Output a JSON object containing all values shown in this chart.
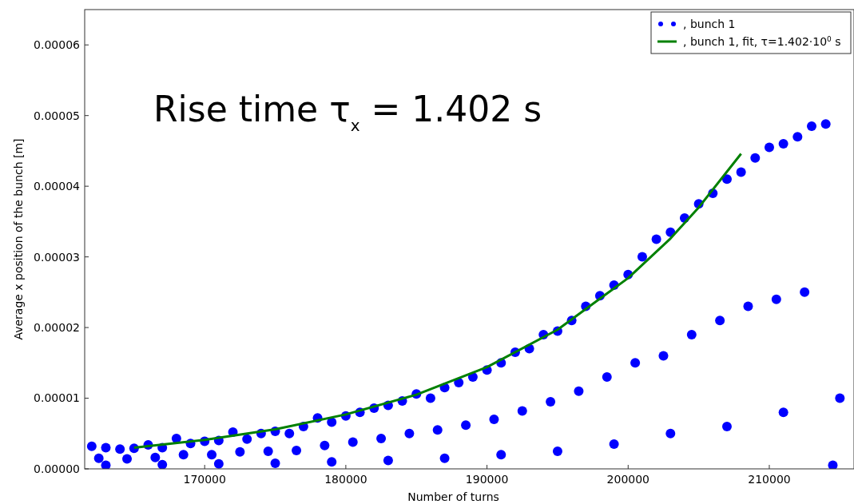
{
  "chart_data": {
    "type": "scatter",
    "xlabel": "Number of turns",
    "ylabel": "Average x position of the bunch [m]",
    "xlim": [
      161500,
      216000
    ],
    "xticks": [
      170000,
      180000,
      190000,
      200000,
      210000
    ],
    "ylim": [
      0,
      6.5e-05
    ],
    "yticks": [
      {
        "value": 0,
        "label": "0.00000"
      },
      {
        "value": 1e-05,
        "label": "0.00001"
      },
      {
        "value": 2e-05,
        "label": "0.00002"
      },
      {
        "value": 3e-05,
        "label": "0.00003"
      },
      {
        "value": 4e-05,
        "label": "0.00004"
      },
      {
        "value": 5e-05,
        "label": "0.00005"
      },
      {
        "value": 6e-05,
        "label": "0.00006"
      }
    ],
    "grid": false,
    "legend": "top right",
    "marker": "circle",
    "annotations": [
      "Rise time τ$_{x}$ = 1.402 s"
    ],
    "series": [
      {
        "name": ", bunch 1",
        "color": "#0000ff",
        "x": [
          162000,
          163000,
          164000,
          165000,
          166000,
          167000,
          168000,
          169000,
          170000,
          171000,
          172000,
          173000,
          174000,
          175000,
          176000,
          177000,
          178000,
          179000,
          180000,
          181000,
          182000,
          183000,
          184000,
          185000,
          186000,
          187000,
          188000,
          189000,
          190000,
          191000,
          192000,
          193000,
          194000,
          195000,
          196000,
          197000,
          198000,
          199000,
          200000,
          201000,
          202000,
          203000,
          204000,
          205000,
          206000,
          207000,
          208000,
          209000,
          210000,
          211000,
          212000,
          213000,
          214000,
          162500,
          164500,
          166500,
          168500,
          170500,
          172500,
          174500,
          176500,
          178500,
          180500,
          182500,
          184500,
          186500,
          188500,
          190500,
          192500,
          194500,
          196500,
          198500,
          200500,
          202500,
          204500,
          206500,
          208500,
          210500,
          212500,
          214500,
          163000,
          167000,
          171000,
          175000,
          179000,
          183000,
          187000,
          191000,
          195000,
          199000,
          203000,
          207000,
          211000,
          215000
        ],
        "values": [
          3.2e-06,
          3e-06,
          2.8e-06,
          2.9e-06,
          3.4e-06,
          3e-06,
          4.3e-06,
          3.6e-06,
          3.9e-06,
          4e-06,
          5.2e-06,
          4.2e-06,
          5e-06,
          5.3e-06,
          5e-06,
          6e-06,
          7.2e-06,
          6.6e-06,
          7.5e-06,
          8e-06,
          8.6e-06,
          9e-06,
          9.6e-06,
          1.06e-05,
          1e-05,
          1.15e-05,
          1.22e-05,
          1.3e-05,
          1.4e-05,
          1.5e-05,
          1.65e-05,
          1.7e-05,
          1.9e-05,
          1.95e-05,
          2.1e-05,
          2.3e-05,
          2.45e-05,
          2.6e-05,
          2.75e-05,
          3e-05,
          3.25e-05,
          3.35e-05,
          3.55e-05,
          3.75e-05,
          3.9e-05,
          4.1e-05,
          4.2e-05,
          4.4e-05,
          4.55e-05,
          4.6e-05,
          4.7e-05,
          4.85e-05,
          4.88e-05,
          1.5e-06,
          1.4e-06,
          1.6e-06,
          2e-06,
          2e-06,
          2.4e-06,
          2.5e-06,
          2.6e-06,
          3.3e-06,
          3.8e-06,
          4.3e-06,
          5e-06,
          5.5e-06,
          6.2e-06,
          7e-06,
          8.2e-06,
          9.5e-06,
          1.1e-05,
          1.3e-05,
          1.5e-05,
          1.6e-05,
          1.9e-05,
          2.1e-05,
          2.3e-05,
          2.4e-05,
          2.5e-05,
          5e-07,
          5e-07,
          6e-07,
          7e-07,
          8e-07,
          1e-06,
          1.2e-06,
          1.5e-06,
          2e-06,
          2.5e-06,
          3.5e-06,
          5e-06,
          6e-06,
          8e-06,
          1e-05
        ]
      },
      {
        "name": ", bunch 1, fit, τ=1.402·10$^{0}$ s",
        "color": "#008000",
        "type": "line",
        "marker": "none",
        "x": [
          165000,
          170000,
          175000,
          180000,
          185000,
          190000,
          195000,
          200000,
          203000,
          205000,
          208000
        ],
        "values": [
          3e-06,
          4.1e-06,
          5.6e-06,
          7.7e-06,
          1.05e-05,
          1.44e-05,
          1.97e-05,
          2.7e-05,
          3.26e-05,
          3.7e-05,
          4.46e-05
        ]
      }
    ]
  }
}
